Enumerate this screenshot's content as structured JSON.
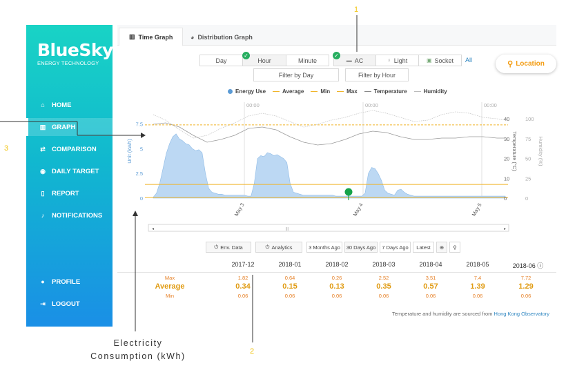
{
  "brand": {
    "name": "BlueSky",
    "tagline": "ENERGY TECHNOLOGY"
  },
  "sidebar": {
    "items": [
      {
        "label": "HOME",
        "icon": "home-icon"
      },
      {
        "label": "GRAPH",
        "icon": "bar-chart-icon",
        "active": true
      },
      {
        "label": "COMPARISON",
        "icon": "swap-icon"
      },
      {
        "label": "DAILY TARGET",
        "icon": "target-icon"
      },
      {
        "label": "REPORT",
        "icon": "document-icon"
      },
      {
        "label": "NOTIFICATIONS",
        "icon": "bell-icon"
      },
      {
        "label": "PROFILE",
        "icon": "user-icon"
      },
      {
        "label": "LOGOUT",
        "icon": "logout-icon"
      }
    ]
  },
  "tabs": [
    {
      "label": "Time Graph",
      "active": true
    },
    {
      "label": "Distribution Graph",
      "active": false
    }
  ],
  "granularity": {
    "options": [
      "Day",
      "Hour",
      "Minute"
    ],
    "selected": "Hour"
  },
  "appliance": {
    "options": [
      "AC",
      "Light",
      "Socket"
    ],
    "selected": "AC",
    "all_label": "All"
  },
  "filters": {
    "day": "Filter by Day",
    "hour": "Filter by Hour"
  },
  "location_label": "Location",
  "legend": [
    "Energy Use",
    "Average",
    "Min",
    "Max",
    "Temperature",
    "Humidity"
  ],
  "colors": {
    "energy": "#5b9bd5",
    "avg": "#f0b429",
    "temperature": "#888888",
    "humidity": "#bbbbbb",
    "accent": "#e67e22",
    "sidebar_top": "#19d3c5",
    "sidebar_bottom": "#1a8fe6"
  },
  "chart_data": {
    "type": "area",
    "time_markers": [
      "00:00",
      "00:00",
      "00:00"
    ],
    "x_tick_labels": [
      "May 3",
      "May 4",
      "May 5"
    ],
    "ylabel": "Unit (kWh)",
    "ylabel_right1": "Temperature (°C)",
    "ylabel_right2": "Humidity (%)",
    "y_ticks": [
      "0",
      "2.5",
      "5",
      "7.5"
    ],
    "y_right1_ticks": [
      "0",
      "10",
      "20",
      "30",
      "40"
    ],
    "y_right2_ticks": [
      "0",
      "25",
      "50",
      "75",
      "100"
    ],
    "ylim": [
      0,
      9
    ],
    "reference_lines": {
      "max": 7.4,
      "average": 1.39,
      "min": 0.06
    },
    "series": [
      {
        "name": "Energy Use",
        "x": [
          0,
          0.5,
          1,
          1.5,
          2,
          2.5,
          3,
          3.5,
          4,
          4.5,
          5,
          5.5,
          6,
          6.5,
          7,
          7.5,
          8,
          8.5,
          9,
          9.5,
          10,
          10.5,
          11,
          11.5,
          12,
          12.5,
          13,
          13.5,
          14,
          14.5,
          15,
          15.5,
          16,
          16.5,
          17,
          17.5,
          18,
          18.5,
          19,
          19.5,
          20,
          20.5,
          21,
          21.5,
          22,
          22.5,
          23,
          23.5,
          24,
          24.5,
          25,
          25.5,
          26,
          26.5,
          27,
          27.5,
          28,
          28.5,
          29,
          29.5,
          30,
          30.5,
          31,
          31.5,
          32,
          32.5,
          33,
          33.5,
          34,
          34.5,
          35,
          35.5,
          36,
          36.5,
          37,
          37.5,
          38,
          38.5,
          39,
          39.5,
          40,
          40.5,
          41,
          41.5,
          42,
          42.5,
          43,
          43.5,
          44,
          44.5,
          45,
          45.5,
          46,
          46.5,
          47,
          47.5,
          48,
          48.5,
          49,
          49.5,
          50,
          50.5,
          51,
          51.5,
          52,
          52.5,
          53,
          53.5,
          54
        ],
        "values": [
          0.1,
          0.5,
          1.5,
          3,
          4.5,
          5.5,
          6.2,
          6.5,
          6.0,
          5.8,
          5.5,
          5.4,
          5.0,
          4.8,
          4.9,
          4.6,
          2.5,
          1.0,
          0.6,
          0.5,
          0.4,
          0.4,
          0.3,
          0.3,
          0.3,
          0.3,
          0.3,
          0.3,
          0.3,
          0.2,
          0.2,
          1.5,
          4.0,
          4.3,
          4.2,
          4.6,
          4.5,
          4.3,
          4.4,
          4.2,
          4.0,
          3.6,
          1.5,
          0.6,
          0.5,
          0.4,
          0.3,
          0.3,
          0.3,
          0.3,
          0.3,
          0.3,
          0.3,
          0.3,
          0.3,
          0.3,
          0.2,
          0.2,
          0.2,
          0.2,
          0.2,
          0.2,
          0.2,
          0.2,
          0.2,
          0.5,
          2.5,
          3.1,
          3.0,
          2.5,
          1.8,
          0.8,
          0.5,
          0.4,
          0.3,
          0.8,
          0.9,
          0.6,
          0.4,
          0.3,
          0.2,
          0.2,
          0.2,
          0.2,
          0.2,
          0.2,
          0.2,
          0.2,
          0.2,
          0.2,
          0.2,
          0.2,
          0.2,
          0.2,
          0.2,
          0.2,
          0.2,
          0.2,
          0.2,
          0.2,
          0.2,
          0.2,
          0.2,
          0.2,
          0.2,
          0.2,
          0.2,
          0.2,
          0.2
        ]
      }
    ]
  },
  "toolbar": {
    "env": "Env. Data",
    "analytics": "Analytics",
    "ranges": [
      "3 Months Ago",
      "30 Days Ago",
      "7 Days Ago",
      "Latest"
    ]
  },
  "summary": {
    "months": [
      "2017-12",
      "2018-01",
      "2018-02",
      "2018-03",
      "2018-04",
      "2018-05",
      "2018-06"
    ],
    "max": [
      "1.82",
      "0.64",
      "0.26",
      "2.52",
      "3.51",
      "7.4",
      "7.72"
    ],
    "average": [
      "0.34",
      "0.15",
      "0.13",
      "0.35",
      "0.57",
      "1.39",
      "1.29"
    ],
    "min": [
      "0.06",
      "0.06",
      "0.06",
      "0.06",
      "0.06",
      "0.06",
      "0.06"
    ],
    "labels": {
      "max": "Max",
      "average": "Average",
      "min": "Min"
    },
    "source_prefix": "Temperature and humidity are sourced from",
    "source_link": "Hong Kong Observatory"
  },
  "annotations": {
    "n1": "1",
    "n2": "2",
    "n3": "3",
    "text_line1": "Electricity",
    "text_line2": "Consumption (kWh)"
  }
}
